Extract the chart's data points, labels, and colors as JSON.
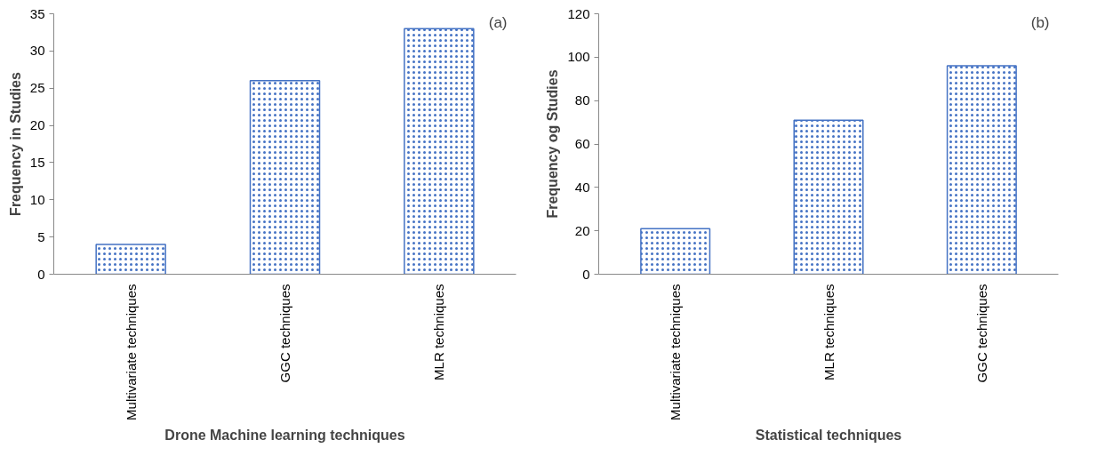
{
  "chart_data": [
    {
      "type": "bar",
      "categories": [
        "Multivariate techniques",
        "GGC techniques",
        "MLR techniques"
      ],
      "values": [
        4,
        26,
        33
      ],
      "color": "#4472c4",
      "xlabel": "Drone Machine learning techniques",
      "ylabel": "Frequency in Studies",
      "ylim": [
        0,
        35
      ],
      "yticks": [
        0,
        5,
        10,
        15,
        20,
        25,
        30,
        35
      ],
      "grid": false,
      "annotations": [
        "(a)"
      ]
    },
    {
      "type": "bar",
      "categories": [
        "Multivariate techniques",
        "MLR techniques",
        "GGC techniques"
      ],
      "values": [
        21,
        71,
        96
      ],
      "color": "#4472c4",
      "xlabel": "Statistical techniques",
      "ylabel": "Frequency og Studies",
      "ylim": [
        0,
        120
      ],
      "yticks": [
        0,
        20,
        40,
        60,
        80,
        100,
        120
      ],
      "grid": false,
      "annotations": [
        "(b)"
      ]
    }
  ]
}
